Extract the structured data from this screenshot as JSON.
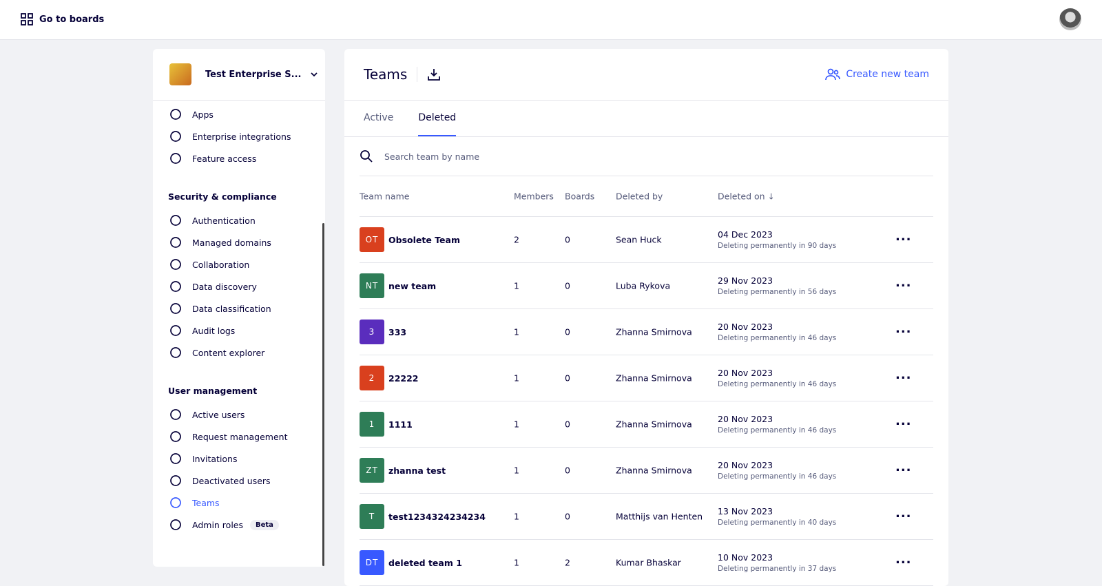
{
  "header": {
    "go_to_boards": "Go to boards"
  },
  "sidebar": {
    "workspace": "Test Enterprise S...",
    "top_items": [
      "Apps",
      "Enterprise integrations",
      "Feature access"
    ],
    "sections": [
      {
        "title": "Security & compliance",
        "items": [
          "Authentication",
          "Managed domains",
          "Collaboration",
          "Data discovery",
          "Data classification",
          "Audit logs",
          "Content explorer"
        ]
      },
      {
        "title": "User management",
        "items": [
          "Active users",
          "Request management",
          "Invitations",
          "Deactivated users",
          "Teams",
          "Admin roles"
        ]
      }
    ],
    "active": "Teams",
    "badge": "Beta"
  },
  "main": {
    "title": "Teams",
    "create": "Create new team",
    "tabs": [
      "Active",
      "Deleted"
    ],
    "active_tab": "Deleted",
    "search_placeholder": "Search team by name",
    "columns": [
      "Team name",
      "Members",
      "Boards",
      "Deleted by",
      "Deleted on"
    ],
    "rows": [
      {
        "initials": "OT",
        "color": "#d9401e",
        "name": "Obsolete Team",
        "members": "2",
        "boards": "0",
        "deleted_by": "Sean Huck",
        "date": "04 Dec 2023",
        "note": "Deleting permanently in 90 days"
      },
      {
        "initials": "NT",
        "color": "#2e7d57",
        "name": "new team",
        "members": "1",
        "boards": "0",
        "deleted_by": "Luba Rykova",
        "date": "29 Nov 2023",
        "note": "Deleting permanently in 56 days"
      },
      {
        "initials": "3",
        "color": "#5a2dbd",
        "name": "333",
        "members": "1",
        "boards": "0",
        "deleted_by": "Zhanna Smirnova",
        "date": "20 Nov 2023",
        "note": "Deleting permanently in 46 days"
      },
      {
        "initials": "2",
        "color": "#d9401e",
        "name": "22222",
        "members": "1",
        "boards": "0",
        "deleted_by": "Zhanna Smirnova",
        "date": "20 Nov 2023",
        "note": "Deleting permanently in 46 days"
      },
      {
        "initials": "1",
        "color": "#2e7d57",
        "name": "1111",
        "members": "1",
        "boards": "0",
        "deleted_by": "Zhanna Smirnova",
        "date": "20 Nov 2023",
        "note": "Deleting permanently in 46 days"
      },
      {
        "initials": "ZT",
        "color": "#2e7d57",
        "name": "zhanna test",
        "members": "1",
        "boards": "0",
        "deleted_by": "Zhanna Smirnova",
        "date": "20 Nov 2023",
        "note": "Deleting permanently in 46 days"
      },
      {
        "initials": "T",
        "color": "#2e7d57",
        "name": "test1234324234234",
        "members": "1",
        "boards": "0",
        "deleted_by": "Matthijs van Henten",
        "date": "13 Nov 2023",
        "note": "Deleting permanently in 40 days"
      },
      {
        "initials": "DT",
        "color": "#3859ff",
        "name": "deleted team 1",
        "members": "1",
        "boards": "2",
        "deleted_by": "Kumar Bhaskar",
        "date": "10 Nov 2023",
        "note": "Deleting permanently in 37 days"
      }
    ]
  }
}
